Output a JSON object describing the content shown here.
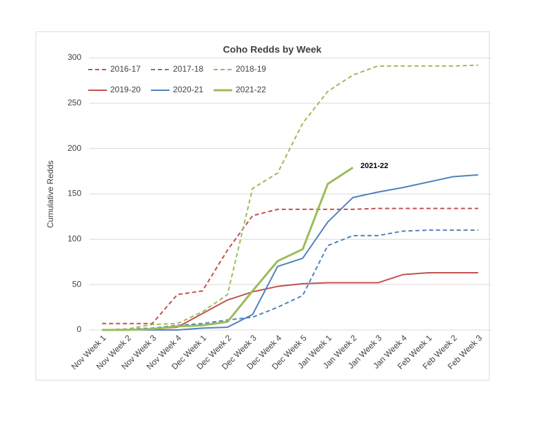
{
  "chart_data": {
    "type": "line",
    "title": "Coho Redds by Week",
    "y_label": "Cumulative Redds",
    "annotation": "2021-22",
    "categories": [
      "Nov Week 1",
      "Nov Week 2",
      "Nov Week 3",
      "Nov Week 4",
      "Dec Week 1",
      "Dec Week 2",
      "Dec Week 3",
      "Dec Week 4",
      "Dec Week 5",
      "Jan Week 1",
      "Jan Week 2",
      "Jan Week 3",
      "Jan Week 4",
      "Feb Week 1",
      "Feb Week 2",
      "Feb Week 3"
    ],
    "series": [
      {
        "name": "2016-17",
        "color": "#c0504d",
        "dashed": true,
        "linewidth": 2,
        "values": [
          7,
          7,
          7,
          39,
          43,
          88,
          126,
          133,
          133,
          133,
          133,
          134,
          134,
          134,
          134,
          134
        ]
      },
      {
        "name": "2017-18",
        "color": "#4f81bd",
        "dashed": true,
        "linewidth": 2,
        "values": [
          0,
          1,
          2,
          5,
          7,
          11,
          14,
          25,
          38,
          93,
          104,
          104,
          109,
          110,
          110,
          110
        ]
      },
      {
        "name": "2018-19",
        "color": "#9bbb59",
        "dashed": true,
        "linewidth": 2,
        "values": [
          0,
          1,
          6,
          7,
          20,
          39,
          156,
          173,
          228,
          263,
          281,
          291,
          291,
          291,
          291,
          292
        ]
      },
      {
        "name": "2019-20",
        "color": "#c0504d",
        "dashed": false,
        "linewidth": 2,
        "values": [
          0,
          0,
          1,
          3,
          18,
          33,
          42,
          48,
          51,
          52,
          52,
          52,
          61,
          63,
          63,
          63
        ]
      },
      {
        "name": "2020-21",
        "color": "#4f81bd",
        "dashed": false,
        "linewidth": 2,
        "values": [
          0,
          0,
          0,
          0,
          2,
          3,
          17,
          70,
          79,
          119,
          146,
          152,
          157,
          163,
          169,
          171
        ]
      },
      {
        "name": "2021-22",
        "color": "#9bbb59",
        "dashed": false,
        "linewidth": 3,
        "values": [
          0,
          0,
          1,
          4,
          5,
          9,
          43,
          76,
          89,
          161,
          179,
          null,
          null,
          null,
          null,
          null
        ]
      }
    ],
    "ylim": [
      0,
      300
    ],
    "yticks": [
      0,
      50,
      100,
      150,
      200,
      250,
      300
    ],
    "grid": true
  }
}
